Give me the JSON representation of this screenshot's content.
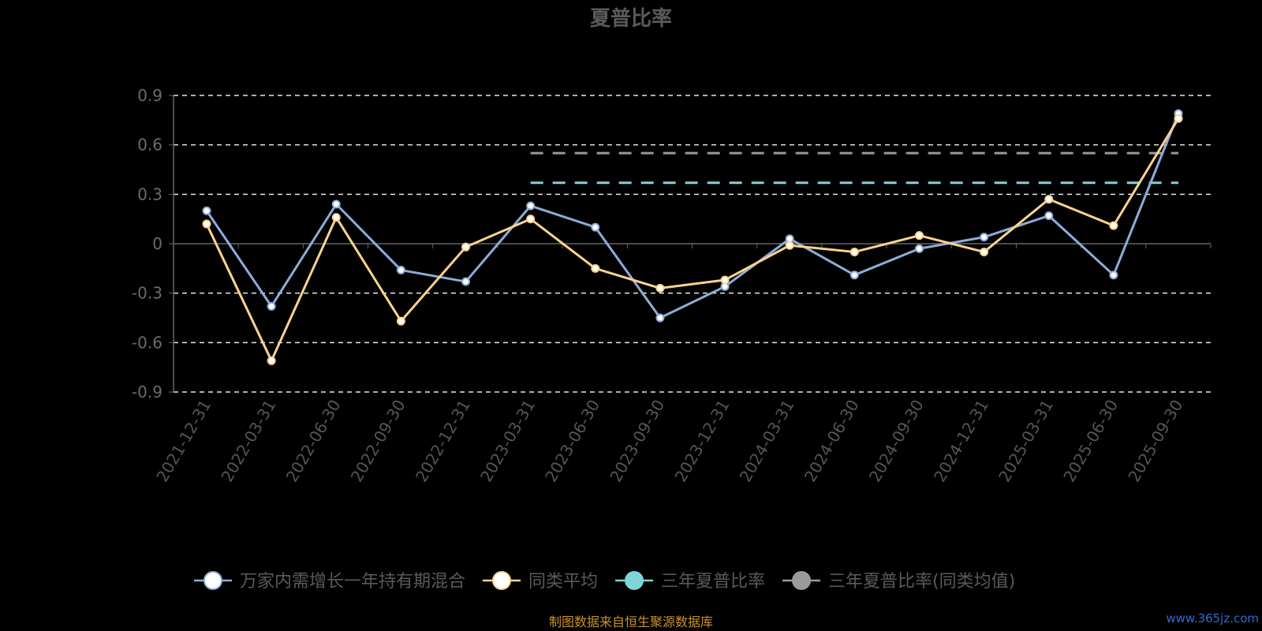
{
  "chart_data": {
    "type": "line",
    "title": "夏普比率",
    "categories": [
      "2021-12-31",
      "2022-03-31",
      "2022-06-30",
      "2022-09-30",
      "2022-12-31",
      "2023-03-31",
      "2023-06-30",
      "2023-09-30",
      "2023-12-31",
      "2024-03-31",
      "2024-06-30",
      "2024-09-30",
      "2024-12-31",
      "2025-03-31",
      "2025-06-30",
      "2025-09-30"
    ],
    "y_ticks": [
      "0.9",
      "0.6",
      "0.3",
      "0",
      "-0.3",
      "-0.6",
      "-0.9"
    ],
    "ylim": [
      -0.9,
      0.9
    ],
    "grid": true,
    "legend_position": "bottom",
    "series": [
      {
        "name": "万家内需增长一年持有期混合",
        "color": "#8eacd8",
        "values": [
          0.2,
          -0.38,
          0.24,
          -0.16,
          -0.23,
          0.23,
          0.1,
          -0.45,
          -0.26,
          0.03,
          -0.19,
          -0.03,
          0.04,
          0.17,
          -0.19,
          0.79
        ]
      },
      {
        "name": "同类平均",
        "color": "#fbd38c",
        "values": [
          0.12,
          -0.71,
          0.16,
          -0.47,
          -0.02,
          0.15,
          -0.15,
          -0.27,
          -0.22,
          -0.01,
          -0.05,
          0.05,
          -0.05,
          0.27,
          0.11,
          0.76
        ]
      }
    ],
    "reference_lines": [
      {
        "name": "三年夏普比率",
        "color": "#7fd4d8",
        "value": 0.37,
        "from": "2023-03-31",
        "to": "2025-09-30"
      },
      {
        "name": "三年夏普比率(同类均值)",
        "color": "#9a9a9a",
        "value": 0.55,
        "from": "2023-03-31",
        "to": "2025-09-30"
      }
    ]
  },
  "legend": [
    {
      "label": "万家内需增长一年持有期混合",
      "color": "#8eacd8",
      "fill": "#ffffff"
    },
    {
      "label": "同类平均",
      "color": "#fbd38c",
      "fill": "#ffffff"
    },
    {
      "label": "三年夏普比率",
      "color": "#7fd4d8",
      "fill": "#7fd4d8"
    },
    {
      "label": "三年夏普比率(同类均值)",
      "color": "#9a9a9a",
      "fill": "#9a9a9a"
    }
  ],
  "footer": "制图数据来自恒生聚源数据库",
  "watermark": "www.365jz.com"
}
